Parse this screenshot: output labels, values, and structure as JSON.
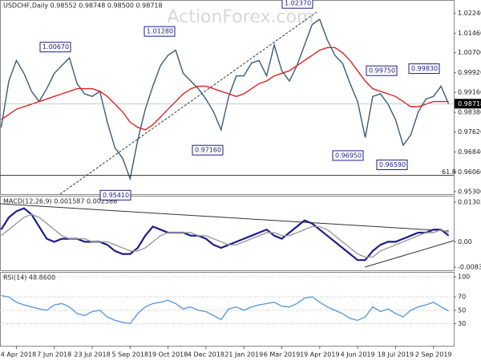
{
  "chart_data": {
    "type": "candle-line",
    "title": "USDCHF,Daily  0.98552 0.98748 0.98500 0.98718",
    "watermark": "ActionForex.com",
    "categories": [
      null,
      null,
      "24 Apr 2018",
      null,
      null,
      null,
      null,
      "7 Jun 2018",
      null,
      null,
      null,
      null,
      "23 Jul 2018",
      null,
      null,
      null,
      null,
      "5 Sep 2018",
      null,
      null,
      null,
      null,
      "19 Oct 2018",
      null,
      null,
      null,
      null,
      "4 Dec 2018",
      null,
      null,
      null,
      null,
      "21 Jan 2019",
      null,
      null,
      null,
      null,
      "6 Mar 2019",
      null,
      null,
      null,
      null,
      "19 Apr 2019",
      null,
      null,
      null,
      null,
      "4 Jun 2019",
      null,
      null,
      null,
      null,
      "18 Jul 2019",
      null,
      null,
      null,
      null,
      "2 Sep 2019",
      null,
      null
    ],
    "series": [
      {
        "name": "USDCHF",
        "color": "#3b5c78",
        "values": [
          0.978,
          0.996,
          1.004,
          0.999,
          0.992,
          0.988,
          0.993,
          0.999,
          1.002,
          1.005,
          0.995,
          0.991,
          0.99,
          0.992,
          0.98,
          0.97,
          0.966,
          0.958,
          0.973,
          0.985,
          0.994,
          1.002,
          1.006,
          1.008,
          0.999,
          0.996,
          0.993,
          0.989,
          0.984,
          0.977,
          0.99,
          0.998,
          0.998,
          1.003,
          1.004,
          0.998,
          1.01,
          1.0,
          0.996,
          1.002,
          1.01,
          1.018,
          1.02,
          1.012,
          1.006,
          1.003,
          0.995,
          0.988,
          0.974,
          0.99,
          0.991,
          0.987,
          0.981,
          0.971,
          0.975,
          0.984,
          0.989,
          0.99,
          0.994,
          0.987
        ]
      },
      {
        "name": "MA",
        "color": "#e02020",
        "values": [
          0.981,
          0.983,
          0.985,
          0.986,
          0.987,
          0.988,
          0.989,
          0.99,
          0.991,
          0.992,
          0.993,
          0.993,
          0.993,
          0.992,
          0.99,
          0.987,
          0.984,
          0.98,
          0.978,
          0.977,
          0.979,
          0.982,
          0.985,
          0.988,
          0.991,
          0.993,
          0.994,
          0.994,
          0.993,
          0.992,
          0.991,
          0.99,
          0.991,
          0.993,
          0.995,
          0.996,
          0.998,
          0.999,
          1.0,
          1.002,
          1.004,
          1.006,
          1.008,
          1.009,
          1.009,
          1.007,
          1.004,
          1.0,
          0.996,
          0.993,
          0.992,
          0.991,
          0.99,
          0.988,
          0.986,
          0.986,
          0.987,
          0.988,
          0.988,
          0.988
        ]
      }
    ],
    "ylim": [
      0.952,
      1.0272
    ],
    "yticks": [
      {
        "value": 1.0224,
        "label": "1.02240"
      },
      {
        "value": 1.0146,
        "label": "1.01460"
      },
      {
        "value": 1.007,
        "label": "1.00700"
      },
      {
        "value": 0.9992,
        "label": "0.99920"
      },
      {
        "value": 0.9916,
        "label": "0.99160"
      },
      {
        "value": 0.9838,
        "label": "0.98380"
      },
      {
        "value": 0.9762,
        "label": "0.97620"
      },
      {
        "value": 0.9684,
        "label": "0.96840"
      },
      {
        "value": 0.9606,
        "label": "0.96060"
      },
      {
        "value": 0.953,
        "label": "0.95300"
      }
    ],
    "last_price": {
      "value": 0.98718,
      "label": "0.98718"
    },
    "fib_level": {
      "value": 0.9593,
      "label": "61.8"
    },
    "annotations": [
      {
        "value": 1.0067,
        "label": "1.00670"
      },
      {
        "value": 1.0128,
        "label": "1.01280"
      },
      {
        "value": 0.9541,
        "label": "0.95410"
      },
      {
        "value": 0.9716,
        "label": "0.97160"
      },
      {
        "value": 1.0237,
        "label": "1.02370"
      },
      {
        "value": 0.9975,
        "label": "0.99750"
      },
      {
        "value": 0.9983,
        "label": "0.99830"
      },
      {
        "value": 0.9695,
        "label": "0.96950"
      },
      {
        "value": 0.9659,
        "label": "0.96590"
      }
    ],
    "macd": {
      "label": "MACD(12,26,9) 0.001587 0.002586",
      "ylim": [
        -0.00938,
        0.01485
      ],
      "yticks": [
        0.013034,
        {
          "value": 0,
          "label": "0.00"
        },
        -0.00834
      ],
      "series": [
        {
          "name": "MACD",
          "color": "#1c1c8a",
          "values": [
            0.004,
            0.008,
            0.01,
            0.011,
            0.009,
            0.005,
            0.001,
            0.0,
            0.001,
            0.001,
            0.001,
            0.0,
            0.0,
            0.0,
            -0.001,
            -0.003,
            -0.004,
            -0.004,
            -0.002,
            0.002,
            0.005,
            0.004,
            0.003,
            0.003,
            0.003,
            0.002,
            0.002,
            0.001,
            -0.001,
            -0.002,
            -0.001,
            0.0,
            0.001,
            0.002,
            0.003,
            0.004,
            0.002,
            0.001,
            0.003,
            0.005,
            0.007,
            0.006,
            0.004,
            0.002,
            0.0,
            -0.002,
            -0.004,
            -0.006,
            -0.006,
            -0.003,
            -0.001,
            0.0,
            0.0,
            0.001,
            0.002,
            0.003,
            0.003,
            0.004,
            0.004,
            0.002
          ]
        },
        {
          "name": "Signal",
          "color": "#9a9a9a",
          "values": [
            0.002,
            0.004,
            0.006,
            0.008,
            0.009,
            0.008,
            0.006,
            0.004,
            0.002,
            0.001,
            0.001,
            0.001,
            0.0,
            0.0,
            0.0,
            -0.001,
            -0.002,
            -0.003,
            -0.003,
            -0.002,
            0.0,
            0.002,
            0.003,
            0.003,
            0.003,
            0.003,
            0.002,
            0.002,
            0.001,
            0.0,
            -0.001,
            -0.001,
            0.0,
            0.001,
            0.002,
            0.003,
            0.003,
            0.002,
            0.002,
            0.003,
            0.004,
            0.005,
            0.005,
            0.004,
            0.002,
            0.0,
            -0.002,
            -0.004,
            -0.005,
            -0.005,
            -0.003,
            -0.002,
            -0.001,
            0.0,
            0.001,
            0.002,
            0.003,
            0.003,
            0.004,
            0.003
          ]
        }
      ]
    },
    "rsi": {
      "label": "RSI(14) 48.8600",
      "ylim": [
        -3,
        106
      ],
      "yticks": [
        100,
        70,
        50,
        30
      ],
      "series": [
        {
          "name": "RSI",
          "color": "#5b9be0",
          "values": [
            72,
            70,
            62,
            58,
            55,
            52,
            50,
            58,
            60,
            55,
            45,
            42,
            48,
            50,
            40,
            35,
            32,
            30,
            45,
            55,
            60,
            62,
            65,
            60,
            52,
            55,
            50,
            48,
            42,
            36,
            52,
            55,
            50,
            55,
            58,
            60,
            62,
            56,
            55,
            60,
            68,
            70,
            62,
            55,
            50,
            45,
            38,
            35,
            40,
            55,
            48,
            52,
            45,
            40,
            50,
            55,
            58,
            62,
            55,
            49
          ]
        }
      ]
    }
  }
}
